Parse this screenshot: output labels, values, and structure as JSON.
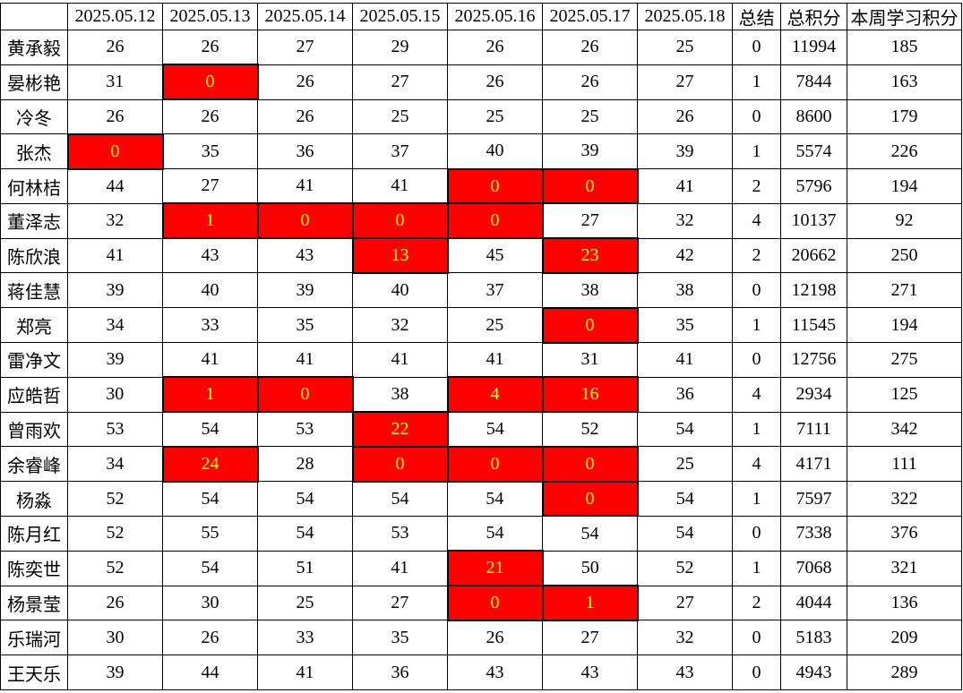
{
  "table": {
    "corner_label": "",
    "date_headers": [
      "2025.05.12",
      "2025.05.13",
      "2025.05.14",
      "2025.05.15",
      "2025.05.16",
      "2025.05.17",
      "2025.05.18"
    ],
    "summary_header": "总结",
    "total_header": "总积分",
    "week_header": "本周学习积分",
    "rows": [
      {
        "name": "黄承毅",
        "daily": [
          26,
          26,
          27,
          29,
          26,
          26,
          25
        ],
        "alert_days": [],
        "summary": 0,
        "total": 11994,
        "week": 185
      },
      {
        "name": "晏彬艳",
        "daily": [
          31,
          0,
          26,
          27,
          26,
          26,
          27
        ],
        "alert_days": [
          1
        ],
        "summary": 1,
        "total": 7844,
        "week": 163
      },
      {
        "name": "冷冬",
        "daily": [
          26,
          26,
          26,
          25,
          25,
          25,
          26
        ],
        "alert_days": [],
        "summary": 0,
        "total": 8600,
        "week": 179
      },
      {
        "name": "张杰",
        "daily": [
          0,
          35,
          36,
          37,
          40,
          39,
          39
        ],
        "alert_days": [
          0
        ],
        "summary": 1,
        "total": 5574,
        "week": 226
      },
      {
        "name": "何林桔",
        "daily": [
          44,
          27,
          41,
          41,
          0,
          0,
          41
        ],
        "alert_days": [
          4,
          5
        ],
        "summary": 2,
        "total": 5796,
        "week": 194
      },
      {
        "name": "董泽志",
        "daily": [
          32,
          1,
          0,
          0,
          0,
          27,
          32
        ],
        "alert_days": [
          1,
          2,
          3,
          4
        ],
        "summary": 4,
        "total": 10137,
        "week": 92
      },
      {
        "name": "陈欣浪",
        "daily": [
          41,
          43,
          43,
          13,
          45,
          23,
          42
        ],
        "alert_days": [
          3,
          5
        ],
        "summary": 2,
        "total": 20662,
        "week": 250
      },
      {
        "name": "蒋佳慧",
        "daily": [
          39,
          40,
          39,
          40,
          37,
          38,
          38
        ],
        "alert_days": [],
        "summary": 0,
        "total": 12198,
        "week": 271
      },
      {
        "name": "郑亮",
        "daily": [
          34,
          33,
          35,
          32,
          25,
          0,
          35
        ],
        "alert_days": [
          5
        ],
        "summary": 1,
        "total": 11545,
        "week": 194
      },
      {
        "name": "雷净文",
        "daily": [
          39,
          41,
          41,
          41,
          41,
          31,
          41
        ],
        "alert_days": [],
        "summary": 0,
        "total": 12756,
        "week": 275
      },
      {
        "name": "应皓哲",
        "daily": [
          30,
          1,
          0,
          38,
          4,
          16,
          36
        ],
        "alert_days": [
          1,
          2,
          4,
          5
        ],
        "summary": 4,
        "total": 2934,
        "week": 125
      },
      {
        "name": "曾雨欢",
        "daily": [
          53,
          54,
          53,
          22,
          54,
          52,
          54
        ],
        "alert_days": [
          3
        ],
        "summary": 1,
        "total": 7111,
        "week": 342
      },
      {
        "name": "余睿峰",
        "daily": [
          34,
          24,
          28,
          0,
          0,
          0,
          25
        ],
        "alert_days": [
          1,
          3,
          4,
          5
        ],
        "summary": 4,
        "total": 4171,
        "week": 111
      },
      {
        "name": "杨淼",
        "daily": [
          52,
          54,
          54,
          54,
          54,
          0,
          54
        ],
        "alert_days": [
          5
        ],
        "summary": 1,
        "total": 7597,
        "week": 322
      },
      {
        "name": "陈月红",
        "daily": [
          52,
          55,
          54,
          53,
          54,
          54,
          54
        ],
        "alert_days": [],
        "summary": 0,
        "total": 7338,
        "week": 376
      },
      {
        "name": "陈奕世",
        "daily": [
          52,
          54,
          51,
          41,
          21,
          50,
          52
        ],
        "alert_days": [
          4
        ],
        "summary": 1,
        "total": 7068,
        "week": 321
      },
      {
        "name": "杨景莹",
        "daily": [
          26,
          30,
          25,
          27,
          0,
          1,
          27
        ],
        "alert_days": [
          4,
          5
        ],
        "summary": 2,
        "total": 4044,
        "week": 136
      },
      {
        "name": "乐瑞河",
        "daily": [
          30,
          26,
          33,
          35,
          26,
          27,
          32
        ],
        "alert_days": [],
        "summary": 0,
        "total": 5183,
        "week": 209
      },
      {
        "name": "王天乐",
        "daily": [
          39,
          44,
          41,
          36,
          43,
          43,
          43
        ],
        "alert_days": [],
        "summary": 0,
        "total": 4943,
        "week": 289
      }
    ]
  },
  "colors": {
    "accent_text": "#FF0000",
    "alert_bg": "#FF0000",
    "alert_text": "#FFFF00",
    "grid_border": "#000000",
    "normal_text": "#000000",
    "background": "#FFFFFF"
  }
}
